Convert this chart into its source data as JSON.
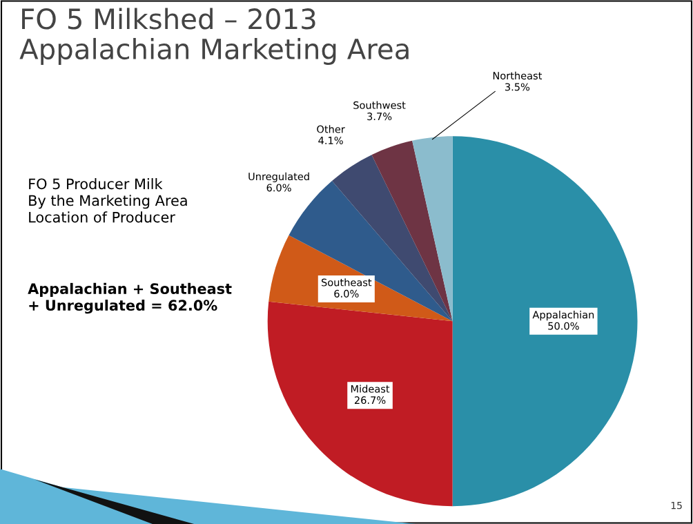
{
  "chart_data": {
    "type": "pie",
    "title": "FO 5 Milkshed – 2013\nAppalachian Marketing Area",
    "categories": [
      "Appalachian",
      "Mideast",
      "Southeast",
      "Unregulated",
      "Other",
      "Southwest",
      "Northeast"
    ],
    "values": [
      50.0,
      26.7,
      6.0,
      6.0,
      4.1,
      3.7,
      3.5
    ],
    "value_labels": [
      "50.0%",
      "26.7%",
      "6.0%",
      "6.0%",
      "4.1%",
      "3.7%",
      "3.5%"
    ],
    "colors": [
      "#2a8fa8",
      "#c01c24",
      "#d05a18",
      "#2f5b8c",
      "#3f4a70",
      "#6e3444",
      "#8bbccd"
    ],
    "annotations": [
      "FO 5 Producer Milk\nBy the Marketing Area\nLocation of Producer",
      "Appalachian + Southeast\n+ Unregulated = 62.0%",
      "15"
    ],
    "legend": false
  }
}
